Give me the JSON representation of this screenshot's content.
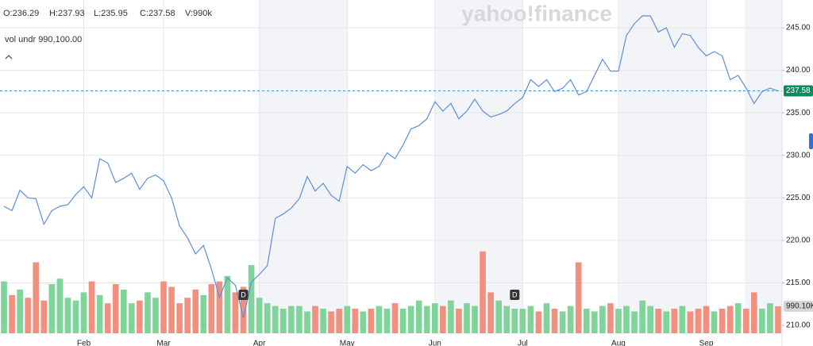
{
  "chart_data": {
    "type": "line",
    "watermark": "yahoo!finance",
    "ohlcv": [
      "O:236.29",
      "H:237.93",
      "L:235.95",
      "C:237.58",
      "V:990k"
    ],
    "volume_label": "vol undr 990,100.00",
    "categories": [
      null,
      null,
      null,
      null,
      null,
      null,
      null,
      null,
      null,
      null,
      "Feb",
      null,
      null,
      null,
      null,
      null,
      null,
      null,
      null,
      null,
      "Mar",
      null,
      null,
      null,
      null,
      null,
      null,
      null,
      null,
      null,
      null,
      null,
      "Apr",
      null,
      null,
      null,
      null,
      null,
      null,
      null,
      null,
      null,
      null,
      "May",
      null,
      null,
      null,
      null,
      null,
      null,
      null,
      null,
      null,
      null,
      "Jun",
      null,
      null,
      null,
      null,
      null,
      null,
      null,
      null,
      null,
      null,
      "Jul",
      null,
      null,
      null,
      null,
      null,
      null,
      null,
      null,
      null,
      null,
      null,
      "Aug",
      null,
      null,
      null,
      null,
      null,
      null,
      null,
      null,
      null,
      null,
      "Sep",
      null,
      null,
      null,
      null,
      null,
      null,
      null,
      null,
      null
    ],
    "series": [
      {
        "color": "#5b8fd6",
        "values": [
          224,
          223.5,
          225.9,
          225,
          224.9,
          221.9,
          223.5,
          224,
          224.2,
          225.4,
          226.3,
          225,
          229.6,
          229.1,
          226.8,
          227.3,
          227.9,
          226,
          227.3,
          227.7,
          227,
          225,
          221.7,
          220.3,
          218.4,
          219.4,
          216.6,
          213.3,
          215.6,
          214.7,
          210.9,
          215.1,
          216,
          217,
          222.6,
          223.1,
          223.8,
          224.9,
          227.5,
          225.8,
          226.7,
          225.3,
          224.6,
          228.7,
          227.9,
          228.9,
          228.2,
          228.7,
          230.3,
          229.6,
          231.2,
          233.1,
          233.5,
          234.3,
          236.3,
          235.2,
          236.1,
          234.3,
          235.2,
          236.6,
          235.2,
          234.5,
          234.8,
          235.2,
          236.1,
          236.8,
          238.9,
          238.1,
          238.9,
          237.5,
          237.9,
          238.9,
          237.1,
          237.5,
          239.4,
          241.3,
          239.9,
          239.9,
          244.1,
          245.5,
          246.4,
          246.4,
          244.5,
          245,
          242.7,
          244.3,
          244.1,
          242.7,
          241.7,
          242.2,
          241.7,
          238.9,
          239.4,
          237.9,
          236.1,
          237.5,
          237.9,
          237.58
        ]
      },
      {
        "axis": "y2",
        "up_color": "#7fd49a",
        "down_color": "#f2907f",
        "values": [
          1900000,
          1400000,
          1600000,
          1300000,
          2600000,
          1200000,
          1800000,
          2000000,
          1300000,
          1200000,
          1500000,
          1900000,
          1400000,
          1100000,
          1800000,
          1600000,
          1100000,
          1200000,
          1500000,
          1300000,
          1900000,
          1700000,
          1100000,
          1300000,
          1600000,
          1400000,
          1800000,
          1900000,
          2100000,
          1500000,
          1700000,
          2500000,
          1300000,
          1100000,
          1000000,
          900000,
          1000000,
          1000000,
          800000,
          1000000,
          900000,
          800000,
          900000,
          1000000,
          900000,
          800000,
          900000,
          1000000,
          900000,
          1100000,
          900000,
          1000000,
          1200000,
          1000000,
          1100000,
          1000000,
          1200000,
          900000,
          1100000,
          1000000,
          3000000,
          1500000,
          1200000,
          1000000,
          900000,
          900000,
          1000000,
          800000,
          1100000,
          900000,
          800000,
          1000000,
          2600000,
          900000,
          800000,
          1000000,
          1100000,
          900000,
          1000000,
          800000,
          1200000,
          1000000,
          900000,
          800000,
          900000,
          1000000,
          800000,
          900000,
          1000000,
          800000,
          900000,
          1000000,
          1100000,
          900000,
          1500000,
          900000,
          1100000,
          990100
        ]
      }
    ],
    "ylim": [
      209.07,
      248.27
    ],
    "yticks": [
      {
        "value": 210,
        "label": "210.00"
      },
      {
        "value": 215,
        "label": "215.00"
      },
      {
        "value": 220,
        "label": "220.00"
      },
      {
        "value": 225,
        "label": "225.00"
      },
      {
        "value": 230,
        "label": "230.00"
      },
      {
        "value": 235,
        "label": "235.00"
      },
      {
        "value": 240,
        "label": "240.00"
      },
      {
        "value": 245,
        "label": "245.00"
      }
    ],
    "y2lim": [
      0,
      12200000
    ],
    "last_price": 237.58,
    "last_price_color": "#0b8a5f",
    "last_volume": {
      "value": 990100,
      "label": "990.10K"
    },
    "dividends": [
      {
        "label": "D",
        "at": 30
      },
      {
        "label": "D",
        "at": 64
      }
    ],
    "grid": true
  }
}
